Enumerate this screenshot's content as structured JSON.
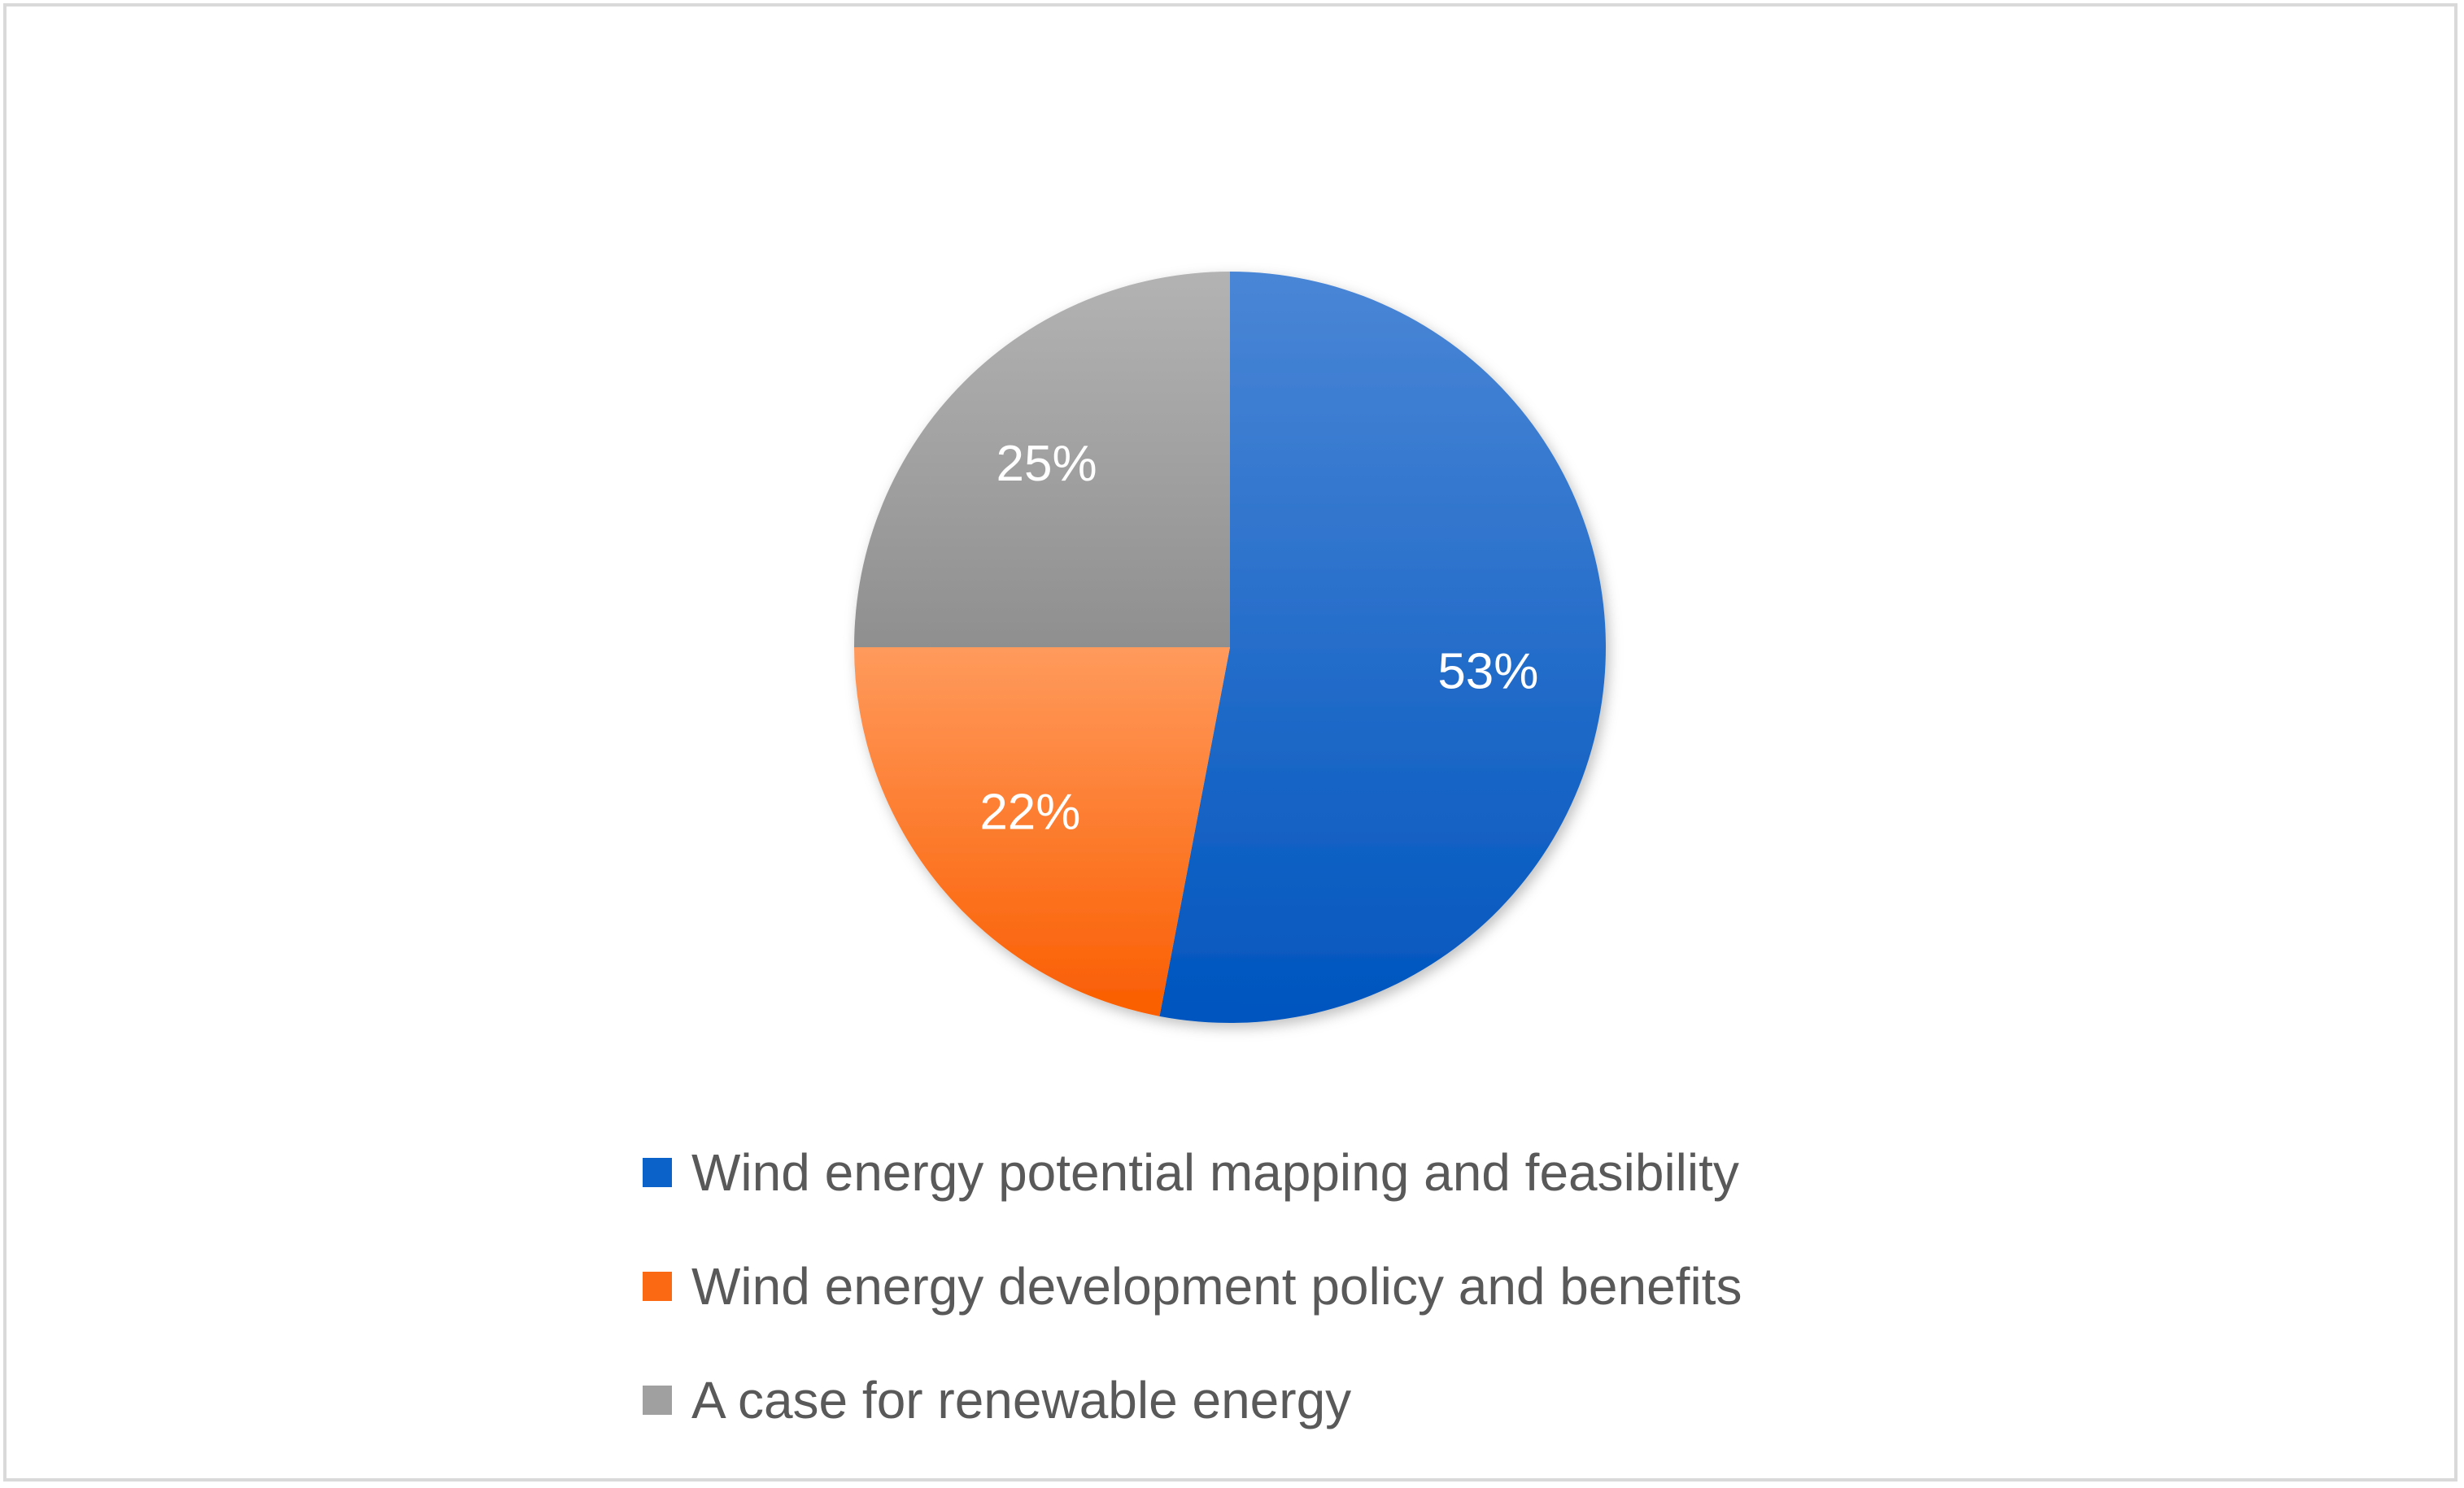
{
  "chart_data": {
    "type": "pie",
    "title": "",
    "start_angle_deg": 90,
    "direction": "clockwise",
    "slices": [
      {
        "label": "Wind energy potential mapping and feasibility",
        "value": 53,
        "display": "53%",
        "color": "#0b62c8"
      },
      {
        "label": "Wind energy development policy and benefits",
        "value": 22,
        "display": "22%",
        "color": "#fb6a12"
      },
      {
        "label": "A case for renewable energy",
        "value": 25,
        "display": "25%",
        "color": "#a0a0a0"
      }
    ],
    "legend_position": "bottom"
  }
}
